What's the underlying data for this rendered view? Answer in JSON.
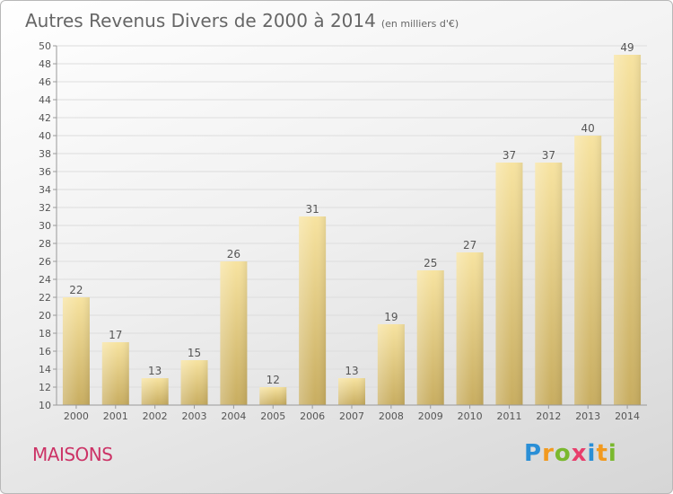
{
  "title": "Autres Revenus Divers de 2000 à 2014",
  "subtitle": "(en milliers d'€)",
  "footer_label": "MAISONS",
  "brand": {
    "letters": [
      "P",
      "r",
      "o",
      "x",
      "i",
      "t",
      "i"
    ],
    "colors": [
      "#2a8fd6",
      "#f29a1f",
      "#7ab82e",
      "#e83e6c",
      "#2a8fd6",
      "#f29a1f",
      "#7ab82e"
    ]
  },
  "chart_data": {
    "type": "bar",
    "title": "Autres Revenus Divers de 2000 à 2014",
    "xlabel": "",
    "ylabel": "",
    "categories": [
      "2000",
      "2001",
      "2002",
      "2003",
      "2004",
      "2005",
      "2006",
      "2007",
      "2008",
      "2009",
      "2010",
      "2011",
      "2012",
      "2013",
      "2014"
    ],
    "values": [
      22,
      17,
      13,
      15,
      26,
      12,
      31,
      13,
      19,
      25,
      27,
      37,
      37,
      40,
      49
    ],
    "ylim": [
      10,
      50
    ],
    "yticks": [
      10,
      12,
      14,
      16,
      18,
      20,
      22,
      24,
      26,
      28,
      30,
      32,
      34,
      36,
      38,
      40,
      42,
      44,
      46,
      48,
      50
    ],
    "grid": true,
    "bar_color_top": "#f7e3a0",
    "bar_color_bottom": "#c8ad60"
  }
}
